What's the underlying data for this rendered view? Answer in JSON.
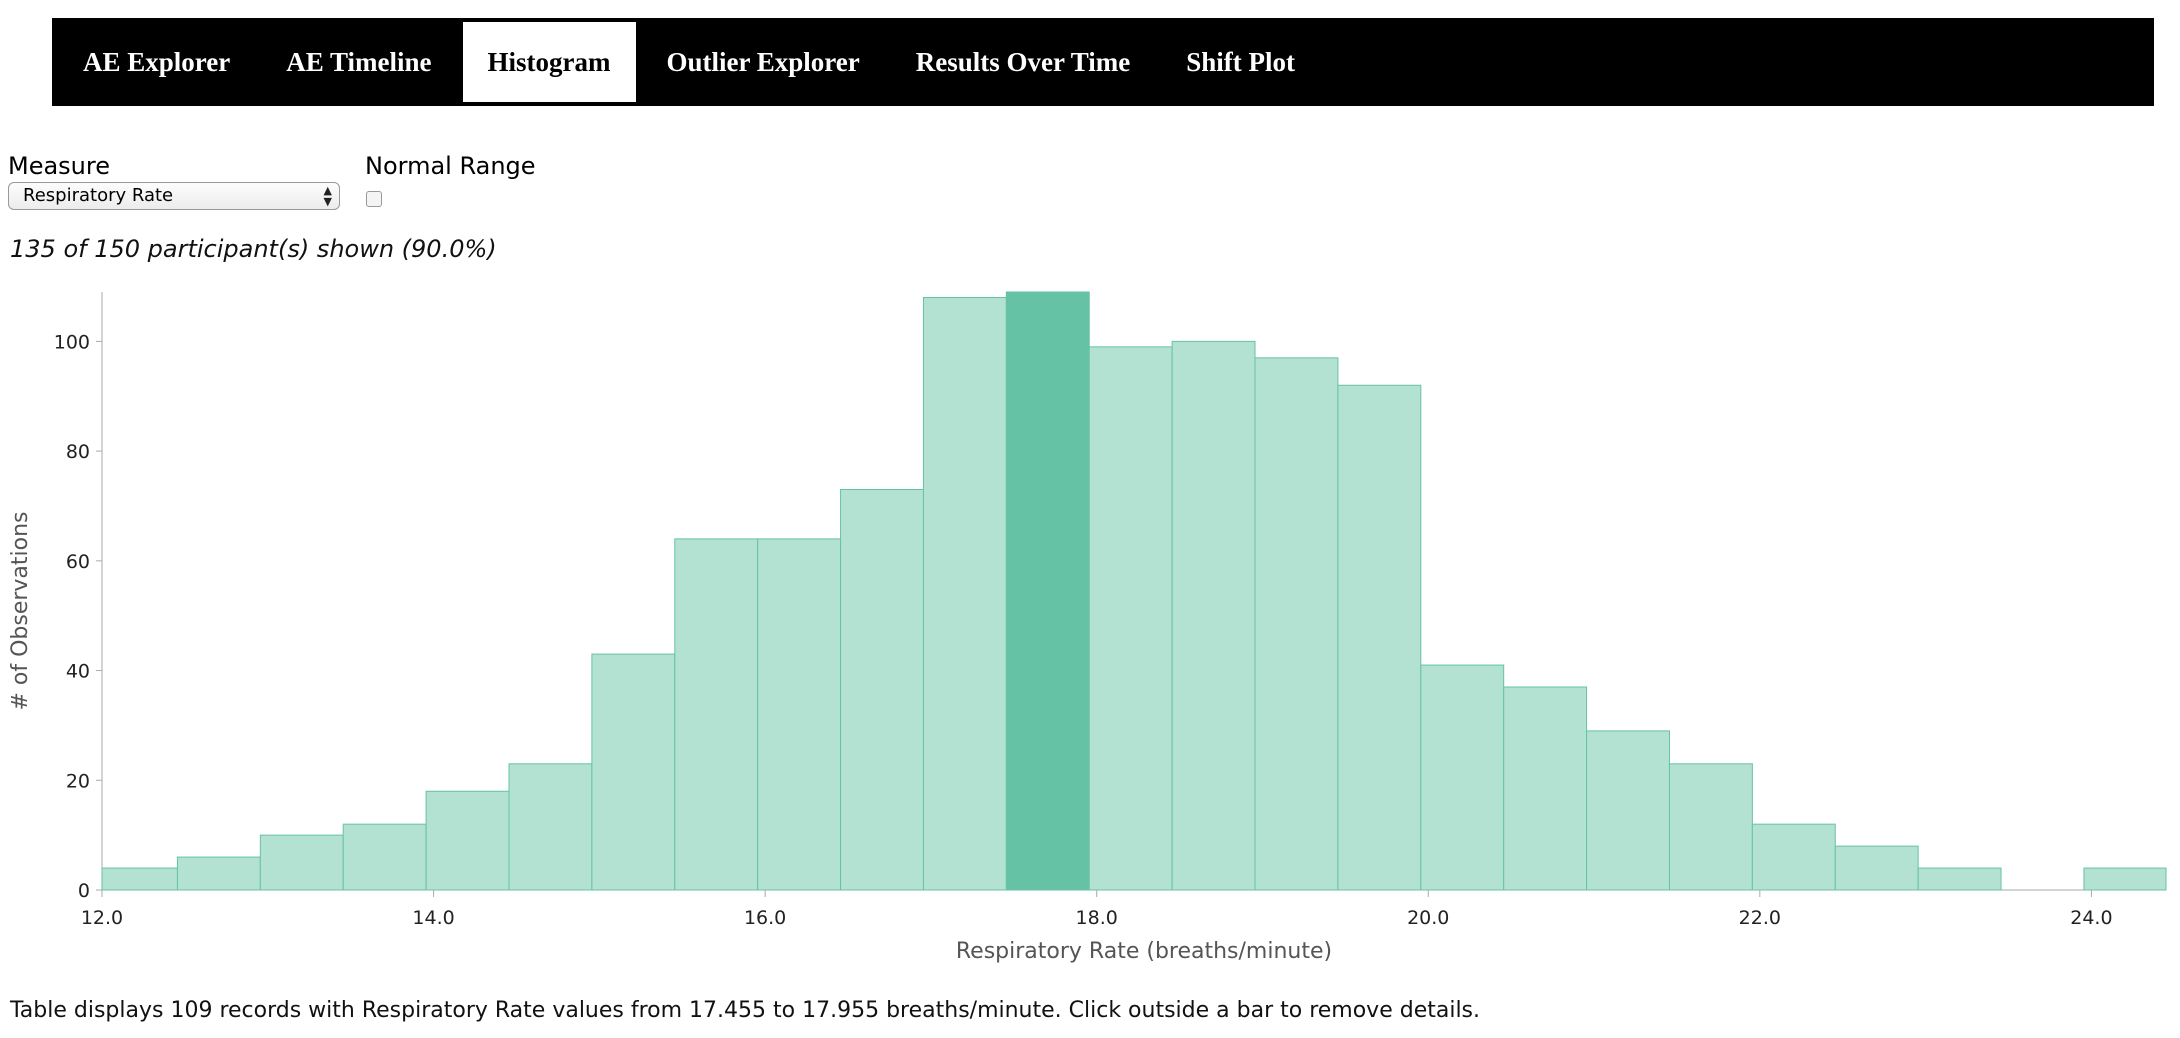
{
  "nav": {
    "tabs": [
      {
        "label": "AE Explorer",
        "active": false
      },
      {
        "label": "AE Timeline",
        "active": false
      },
      {
        "label": "Histogram",
        "active": true
      },
      {
        "label": "Outlier Explorer",
        "active": false
      },
      {
        "label": "Results Over Time",
        "active": false
      },
      {
        "label": "Shift Plot",
        "active": false
      }
    ]
  },
  "controls": {
    "measure_label": "Measure",
    "measure_value": "Respiratory Rate",
    "normal_range_label": "Normal Range",
    "normal_range_checked": false
  },
  "summary": "135 of 150 participant(s) shown (90.0%)",
  "footer": "Table displays 109 records with Respiratory Rate values from 17.455 to 17.955 breaths/minute. Click outside a bar to remove details.",
  "colors": {
    "bar_fill": "#b3e2d2",
    "bar_stroke": "#66c2a5",
    "bar_selected": "#66c2a5"
  },
  "chart_data": {
    "type": "bar",
    "xlabel": "Respiratory Rate (breaths/minute)",
    "ylabel": "# of Observations",
    "xlim": [
      12.0,
      24.45
    ],
    "ylim": [
      0,
      109
    ],
    "x_ticks": [
      "12.0",
      "14.0",
      "16.0",
      "18.0",
      "20.0",
      "22.0",
      "24.0"
    ],
    "y_ticks": [
      "0",
      "20",
      "40",
      "60",
      "80",
      "100"
    ],
    "bin_width": 0.5,
    "bins": [
      {
        "start": 11.955,
        "value": 4
      },
      {
        "start": 12.455,
        "value": 6
      },
      {
        "start": 12.955,
        "value": 10
      },
      {
        "start": 13.455,
        "value": 12
      },
      {
        "start": 13.955,
        "value": 18
      },
      {
        "start": 14.455,
        "value": 23
      },
      {
        "start": 14.955,
        "value": 43
      },
      {
        "start": 15.455,
        "value": 64
      },
      {
        "start": 15.955,
        "value": 64
      },
      {
        "start": 16.455,
        "value": 73
      },
      {
        "start": 16.955,
        "value": 108
      },
      {
        "start": 17.455,
        "value": 109,
        "selected": true
      },
      {
        "start": 17.955,
        "value": 99
      },
      {
        "start": 18.455,
        "value": 100
      },
      {
        "start": 18.955,
        "value": 97
      },
      {
        "start": 19.455,
        "value": 92
      },
      {
        "start": 19.955,
        "value": 41
      },
      {
        "start": 20.455,
        "value": 37
      },
      {
        "start": 20.955,
        "value": 29
      },
      {
        "start": 21.455,
        "value": 23
      },
      {
        "start": 21.955,
        "value": 12
      },
      {
        "start": 22.455,
        "value": 8
      },
      {
        "start": 22.955,
        "value": 4
      },
      {
        "start": 23.455,
        "value": 0
      },
      {
        "start": 23.955,
        "value": 4
      }
    ]
  }
}
